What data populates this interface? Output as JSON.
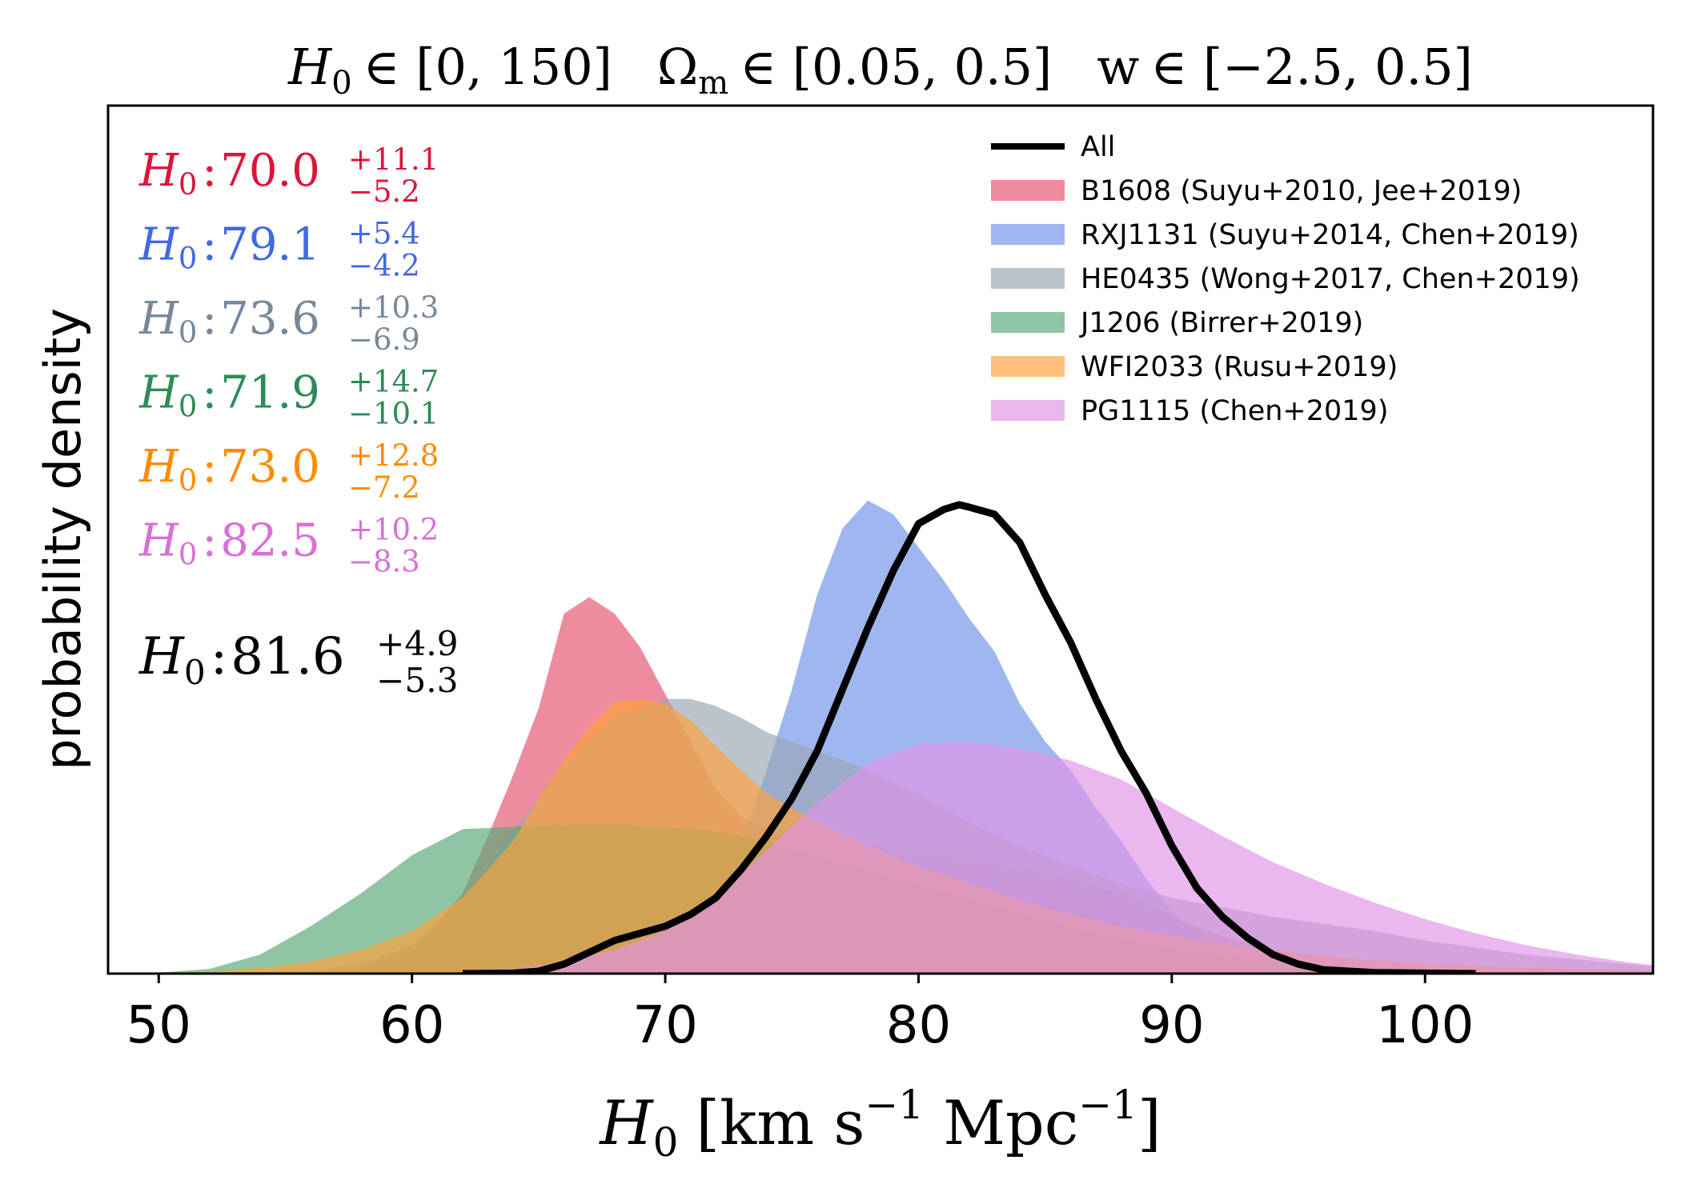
{
  "chart_data": {
    "type": "area",
    "title": {
      "h0_symbol": "H",
      "h0_sub": "0",
      "h0_range": "∈ [0, 150]",
      "om_symbol": "Ω",
      "om_sub": "m",
      "om_range": "∈ [0.05, 0.5]",
      "w_symbol": "w",
      "w_range": "∈ [−2.5, 0.5]"
    },
    "xlabel": {
      "symbol": "H",
      "sub": "0",
      "open": "[km s",
      "exp1": "−1",
      "mid": " Mpc",
      "exp2": "−1",
      "close": "]"
    },
    "ylabel": "probability density",
    "xlim": [
      48,
      109
    ],
    "ylim": [
      0,
      1.0
    ],
    "x_ticks": [
      50,
      60,
      70,
      80,
      90,
      100
    ],
    "grid": false,
    "legend_position": "top-right",
    "series": [
      {
        "name": "B1608 (Suyu+2010, Jee+2019)",
        "color": "#e3546e",
        "opacity": 0.67,
        "kind": "filled",
        "annotation": {
          "value": "70.0",
          "plus": "+11.1",
          "minus": "−5.2",
          "color": "#dc143c"
        },
        "points": [
          [
            48,
            0
          ],
          [
            54,
            0.001
          ],
          [
            58,
            0.01
          ],
          [
            60,
            0.045
          ],
          [
            62,
            0.17
          ],
          [
            63,
            0.29
          ],
          [
            64,
            0.42
          ],
          [
            65,
            0.56
          ],
          [
            66,
            0.76
          ],
          [
            67,
            0.795
          ],
          [
            68,
            0.76
          ],
          [
            69,
            0.69
          ],
          [
            70,
            0.59
          ],
          [
            71,
            0.49
          ],
          [
            72,
            0.39
          ],
          [
            73,
            0.33
          ],
          [
            74,
            0.31
          ],
          [
            75,
            0.295
          ],
          [
            76,
            0.285
          ],
          [
            78,
            0.27
          ],
          [
            80,
            0.255
          ],
          [
            82,
            0.24
          ],
          [
            84,
            0.22
          ],
          [
            86,
            0.2
          ],
          [
            88,
            0.17
          ],
          [
            90,
            0.12
          ],
          [
            92,
            0.08
          ],
          [
            94,
            0.05
          ],
          [
            97,
            0.03
          ],
          [
            100,
            0.018
          ],
          [
            105,
            0.01
          ],
          [
            109,
            0.006
          ]
        ]
      },
      {
        "name": "RXJ1131 (Suyu+2014, Chen+2019)",
        "color": "#7292e5",
        "opacity": 0.67,
        "kind": "filled",
        "annotation": {
          "value": "79.1",
          "plus": "+5.4",
          "minus": "−4.2",
          "color": "#4169e1"
        },
        "points": [
          [
            48,
            0
          ],
          [
            60,
            0
          ],
          [
            64,
            0.002
          ],
          [
            66,
            0.01
          ],
          [
            68,
            0.03
          ],
          [
            70,
            0.06
          ],
          [
            71,
            0.09
          ],
          [
            72,
            0.15
          ],
          [
            73,
            0.27
          ],
          [
            74,
            0.43
          ],
          [
            75,
            0.6
          ],
          [
            76,
            0.8
          ],
          [
            77,
            0.94
          ],
          [
            78,
            0.999
          ],
          [
            79,
            0.97
          ],
          [
            80,
            0.9
          ],
          [
            81,
            0.83
          ],
          [
            82,
            0.75
          ],
          [
            83,
            0.68
          ],
          [
            84,
            0.57
          ],
          [
            85,
            0.49
          ],
          [
            86,
            0.43
          ],
          [
            87,
            0.35
          ],
          [
            88,
            0.28
          ],
          [
            89,
            0.2
          ],
          [
            90,
            0.13
          ],
          [
            91,
            0.08
          ],
          [
            92,
            0.045
          ],
          [
            94,
            0.015
          ],
          [
            96,
            0.004
          ],
          [
            100,
            0
          ],
          [
            109,
            0
          ]
        ]
      },
      {
        "name": "HE0435 (Wong+2017, Chen+2019)",
        "color": "#9aa6b3",
        "opacity": 0.67,
        "kind": "filled",
        "annotation": {
          "value": "73.6",
          "plus": "+10.3",
          "minus": "−6.9",
          "color": "#778899"
        },
        "points": [
          [
            48,
            0
          ],
          [
            56,
            0.005
          ],
          [
            58,
            0.02
          ],
          [
            60,
            0.06
          ],
          [
            62,
            0.15
          ],
          [
            64,
            0.3
          ],
          [
            66,
            0.44
          ],
          [
            68,
            0.54
          ],
          [
            70,
            0.58
          ],
          [
            71,
            0.58
          ],
          [
            72,
            0.565
          ],
          [
            73,
            0.54
          ],
          [
            74,
            0.51
          ],
          [
            76,
            0.47
          ],
          [
            78,
            0.43
          ],
          [
            80,
            0.38
          ],
          [
            82,
            0.32
          ],
          [
            84,
            0.27
          ],
          [
            86,
            0.23
          ],
          [
            88,
            0.19
          ],
          [
            90,
            0.16
          ],
          [
            92,
            0.14
          ],
          [
            94,
            0.12
          ],
          [
            96,
            0.105
          ],
          [
            98,
            0.09
          ],
          [
            100,
            0.07
          ],
          [
            104,
            0.04
          ],
          [
            109,
            0.015
          ]
        ]
      },
      {
        "name": "J1206 (Birrer+2019)",
        "color": "#5aa878",
        "opacity": 0.67,
        "kind": "filled",
        "annotation": {
          "value": "71.9",
          "plus": "+14.7",
          "minus": "−10.1",
          "color": "#2e8b57"
        },
        "points": [
          [
            48,
            0
          ],
          [
            50,
            0.002
          ],
          [
            52,
            0.01
          ],
          [
            54,
            0.04
          ],
          [
            56,
            0.1
          ],
          [
            58,
            0.17
          ],
          [
            60,
            0.25
          ],
          [
            62,
            0.305
          ],
          [
            64,
            0.31
          ],
          [
            66,
            0.315
          ],
          [
            68,
            0.315
          ],
          [
            70,
            0.31
          ],
          [
            72,
            0.3
          ],
          [
            74,
            0.28
          ],
          [
            76,
            0.25
          ],
          [
            78,
            0.22
          ],
          [
            80,
            0.19
          ],
          [
            82,
            0.16
          ],
          [
            84,
            0.13
          ],
          [
            86,
            0.1
          ],
          [
            88,
            0.075
          ],
          [
            90,
            0.055
          ],
          [
            92,
            0.04
          ],
          [
            94,
            0.028
          ],
          [
            97,
            0.016
          ],
          [
            100,
            0.009
          ],
          [
            105,
            0.004
          ],
          [
            109,
            0.002
          ]
        ]
      },
      {
        "name": "WFI2033 (Rusu+2019)",
        "color": "#ffa13a",
        "opacity": 0.67,
        "kind": "filled",
        "annotation": {
          "value": "73.0",
          "plus": "+12.8",
          "minus": "−7.2",
          "color": "#ff8c00"
        },
        "points": [
          [
            48,
            0
          ],
          [
            52,
            0.004
          ],
          [
            54,
            0.012
          ],
          [
            56,
            0.025
          ],
          [
            58,
            0.05
          ],
          [
            60,
            0.09
          ],
          [
            62,
            0.16
          ],
          [
            64,
            0.28
          ],
          [
            65,
            0.37
          ],
          [
            66,
            0.45
          ],
          [
            67,
            0.52
          ],
          [
            68,
            0.575
          ],
          [
            69,
            0.58
          ],
          [
            70,
            0.57
          ],
          [
            71,
            0.535
          ],
          [
            72,
            0.48
          ],
          [
            73,
            0.43
          ],
          [
            74,
            0.38
          ],
          [
            76,
            0.32
          ],
          [
            78,
            0.27
          ],
          [
            80,
            0.225
          ],
          [
            82,
            0.19
          ],
          [
            84,
            0.155
          ],
          [
            86,
            0.125
          ],
          [
            88,
            0.1
          ],
          [
            90,
            0.08
          ],
          [
            92,
            0.062
          ],
          [
            94,
            0.048
          ],
          [
            97,
            0.033
          ],
          [
            100,
            0.022
          ],
          [
            105,
            0.012
          ],
          [
            109,
            0.007
          ]
        ]
      },
      {
        "name": "PG1115 (Chen+2019)",
        "color": "#df94e5",
        "opacity": 0.67,
        "kind": "filled",
        "annotation": {
          "value": "82.5",
          "plus": "+10.2",
          "minus": "−8.3",
          "color": "#da70d6"
        },
        "points": [
          [
            48,
            0
          ],
          [
            62,
            0.001
          ],
          [
            64,
            0.01
          ],
          [
            66,
            0.025
          ],
          [
            68,
            0.05
          ],
          [
            70,
            0.09
          ],
          [
            72,
            0.16
          ],
          [
            74,
            0.26
          ],
          [
            76,
            0.36
          ],
          [
            78,
            0.445
          ],
          [
            80,
            0.485
          ],
          [
            82,
            0.49
          ],
          [
            84,
            0.475
          ],
          [
            86,
            0.45
          ],
          [
            88,
            0.41
          ],
          [
            90,
            0.35
          ],
          [
            92,
            0.29
          ],
          [
            94,
            0.235
          ],
          [
            96,
            0.19
          ],
          [
            98,
            0.15
          ],
          [
            100,
            0.115
          ],
          [
            102,
            0.085
          ],
          [
            104,
            0.06
          ],
          [
            106,
            0.04
          ],
          [
            108,
            0.024
          ],
          [
            109,
            0.018
          ]
        ]
      },
      {
        "name": "All",
        "color": "#000000",
        "kind": "line",
        "annotation": {
          "value": "81.6",
          "plus": "+4.9",
          "minus": "−5.3",
          "color": "#000000"
        },
        "points": [
          [
            62,
            0
          ],
          [
            64,
            0.001
          ],
          [
            65,
            0.005
          ],
          [
            66,
            0.02
          ],
          [
            67,
            0.045
          ],
          [
            68,
            0.07
          ],
          [
            69,
            0.085
          ],
          [
            70,
            0.1
          ],
          [
            71,
            0.125
          ],
          [
            72,
            0.16
          ],
          [
            73,
            0.22
          ],
          [
            74,
            0.29
          ],
          [
            75,
            0.37
          ],
          [
            76,
            0.47
          ],
          [
            77,
            0.6
          ],
          [
            78,
            0.73
          ],
          [
            79,
            0.85
          ],
          [
            80,
            0.95
          ],
          [
            81,
            0.98
          ],
          [
            81.6,
            0.99
          ],
          [
            82,
            0.985
          ],
          [
            83,
            0.97
          ],
          [
            84,
            0.91
          ],
          [
            85,
            0.8
          ],
          [
            86,
            0.7
          ],
          [
            87,
            0.58
          ],
          [
            88,
            0.47
          ],
          [
            89,
            0.38
          ],
          [
            90,
            0.27
          ],
          [
            91,
            0.18
          ],
          [
            92,
            0.12
          ],
          [
            93,
            0.075
          ],
          [
            94,
            0.04
          ],
          [
            95,
            0.02
          ],
          [
            96,
            0.008
          ],
          [
            98,
            0.002
          ],
          [
            102,
            0
          ]
        ]
      }
    ],
    "annotation_label": {
      "symbol": "H",
      "sub": "0",
      "sep": ":"
    }
  }
}
